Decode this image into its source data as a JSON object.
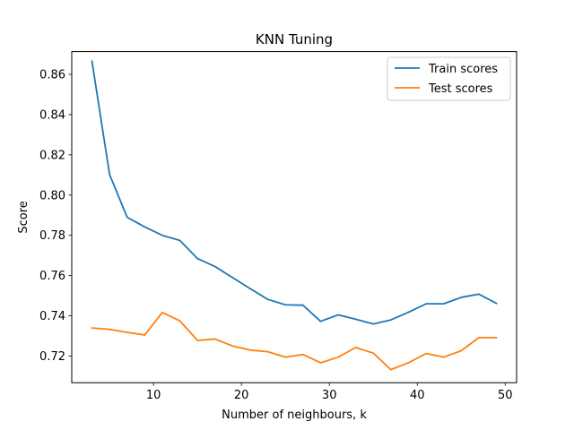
{
  "chart_data": {
    "type": "line",
    "title": "KNN Tuning",
    "xlabel": "Number of neighbours, k",
    "ylabel": "Score",
    "xlim": [
      0.7,
      51.3
    ],
    "ylim": [
      0.7068,
      0.8713
    ],
    "x_ticks": [
      10,
      20,
      30,
      40,
      50
    ],
    "x_tick_labels": [
      "10",
      "20",
      "30",
      "40",
      "50"
    ],
    "y_ticks": [
      0.72,
      0.74,
      0.76,
      0.78,
      0.8,
      0.82,
      0.84,
      0.86
    ],
    "y_tick_labels": [
      "0.72",
      "0.74",
      "0.76",
      "0.78",
      "0.80",
      "0.82",
      "0.84",
      "0.86"
    ],
    "grid": false,
    "legend_position": "top-right",
    "x": [
      3,
      5,
      7,
      9,
      11,
      13,
      15,
      17,
      19,
      21,
      23,
      25,
      27,
      29,
      31,
      33,
      35,
      37,
      39,
      41,
      43,
      45,
      47,
      49
    ],
    "series": [
      {
        "name": "Train scores",
        "color": "#1f77b4",
        "values": [
          0.8665,
          0.8103,
          0.789,
          0.7842,
          0.78,
          0.7775,
          0.7685,
          0.7645,
          0.759,
          0.7535,
          0.7482,
          0.7455,
          0.7453,
          0.7373,
          0.7405,
          0.7383,
          0.736,
          0.738,
          0.7418,
          0.746,
          0.746,
          0.7492,
          0.7508,
          0.7462
        ]
      },
      {
        "name": "Test scores",
        "color": "#ff7f0e",
        "values": [
          0.734,
          0.7333,
          0.7318,
          0.7305,
          0.7417,
          0.7375,
          0.7278,
          0.7285,
          0.725,
          0.723,
          0.7222,
          0.7195,
          0.7208,
          0.7167,
          0.7195,
          0.7243,
          0.7215,
          0.7133,
          0.7167,
          0.7213,
          0.7195,
          0.7227,
          0.7292,
          0.7292
        ]
      }
    ]
  }
}
